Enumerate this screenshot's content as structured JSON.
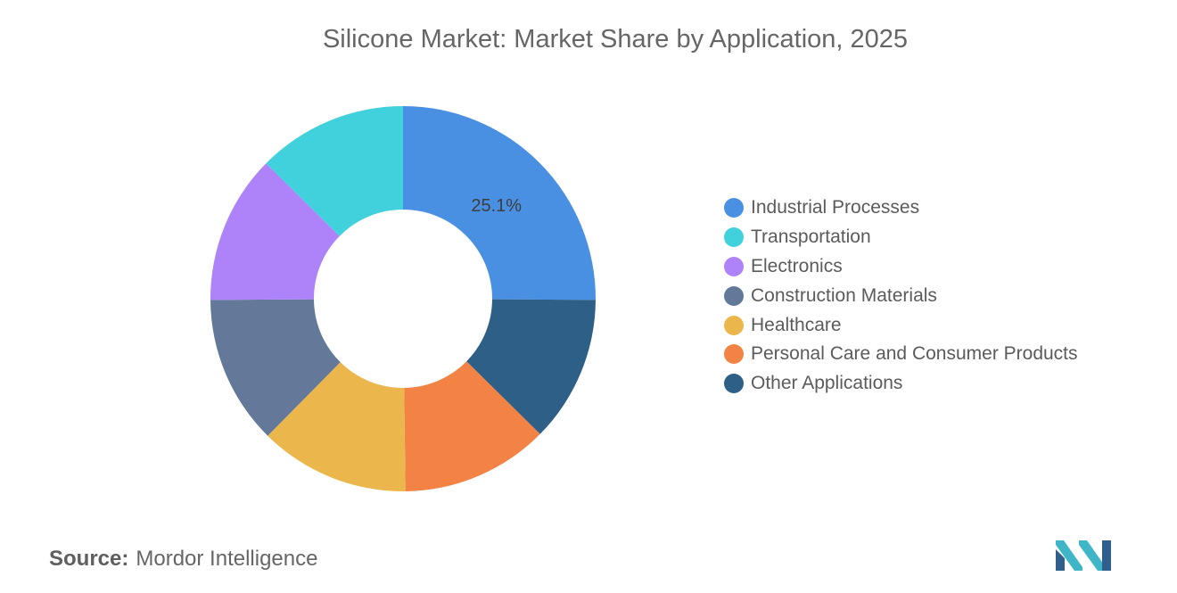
{
  "chart_data": {
    "type": "pie",
    "donut": true,
    "title": "Silicone Market: Market Share by Application, 2025",
    "categories": [
      "Industrial Processes",
      "Other Applications",
      "Personal Care and Consumer Products",
      "Healthcare",
      "Construction Materials",
      "Electronics",
      "Transportation"
    ],
    "values": [
      25.1,
      12.3,
      12.4,
      12.6,
      12.5,
      12.5,
      12.6
    ],
    "colors": [
      "#4a90e2",
      "#2e5f87",
      "#f28344",
      "#ebb64b",
      "#647899",
      "#ae83fa",
      "#41d1dc"
    ],
    "data_labels": [
      {
        "category": "Industrial Processes",
        "text": "25.1%"
      }
    ],
    "legend_position": "right",
    "legend": [
      {
        "label": "Industrial Processes",
        "color": "#4a90e2"
      },
      {
        "label": "Transportation",
        "color": "#41d1dc"
      },
      {
        "label": "Electronics",
        "color": "#ae83fa"
      },
      {
        "label": "Construction Materials",
        "color": "#647899"
      },
      {
        "label": "Healthcare",
        "color": "#ebb64b"
      },
      {
        "label": "Personal Care and Consumer Products",
        "color": "#f28344"
      },
      {
        "label": "Other Applications",
        "color": "#2e5f87"
      }
    ]
  },
  "source": {
    "label": "Source:",
    "value": "Mordor Intelligence"
  },
  "logo": {
    "icon": "mordor-intelligence-logo",
    "colors": [
      "#2f5f8a",
      "#3fb6c8"
    ]
  }
}
